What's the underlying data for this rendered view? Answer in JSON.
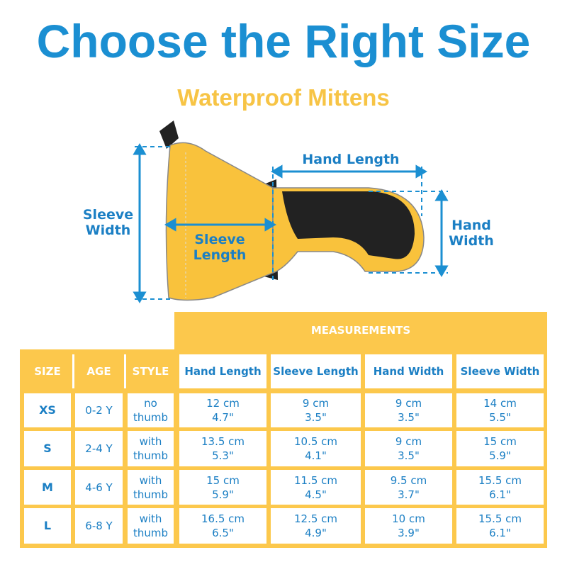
{
  "title": "Choose the Right Size",
  "subtitle": "Waterproof Mittens",
  "diagram": {
    "hand_length": "Hand Length",
    "hand_width": "Hand\nWidth",
    "sleeve_width": "Sleeve\nWidth",
    "sleeve_length": "Sleeve\nLength"
  },
  "table": {
    "group_header": "MEASUREMENTS",
    "headers": [
      "SIZE",
      "AGE",
      "STYLE",
      "Hand Length",
      "Sleeve Length",
      "Hand Width",
      "Sleeve Width"
    ],
    "rows": [
      [
        "XS",
        "0-2 Y",
        "no\nthumb",
        "12 cm\n4.7\"",
        "9 cm\n3.5\"",
        "9 cm\n3.5\"",
        "14 cm\n5.5\""
      ],
      [
        "S",
        "2-4 Y",
        "with\nthumb",
        "13.5 cm\n5.3\"",
        "10.5 cm\n4.1\"",
        "9 cm\n3.5\"",
        "15 cm\n5.9\""
      ],
      [
        "M",
        "4-6 Y",
        "with\nthumb",
        "15 cm\n5.9\"",
        "11.5 cm\n4.5\"",
        "9.5 cm\n3.7\"",
        "15.5 cm\n6.1\""
      ],
      [
        "L",
        "6-8 Y",
        "with\nthumb",
        "16.5 cm\n6.5\"",
        "12.5 cm\n4.9\"",
        "10 cm\n3.9\"",
        "15.5 cm\n6.1\""
      ]
    ]
  },
  "colors": {
    "blue": "#1b8fd2",
    "yellow": "#fcc84c"
  }
}
